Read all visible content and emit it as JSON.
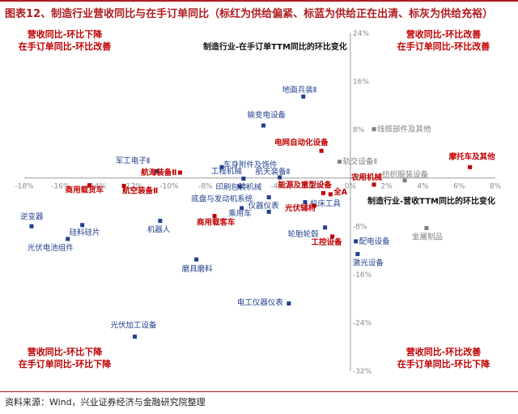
{
  "title": "图表12、制造行业营收同比与在手订单同比（标红为供给偏紧、标蓝为供给正在出清、标灰为供给充裕）",
  "source": "资料来源：Wind，兴业证券经济与金融研究院整理",
  "colors": {
    "red": "#c00000",
    "blue": "#1f3f8f",
    "gray": "#808080",
    "axis": "#999999",
    "title": "#b01c20"
  },
  "chart_data": {
    "type": "scatter",
    "xlabel": "制造行业-营收TTM同比的环比变化",
    "ylabel": "制造行业-在手订单TTM同比的环比变化",
    "xlim": [
      -18,
      8
    ],
    "ylim": [
      -32,
      24
    ],
    "x_ticks": [
      "-18%",
      "-16%",
      "-14%",
      "-12%",
      "-10%",
      "-8%",
      "-6%",
      "-4%",
      "-2%",
      "0%",
      "2%",
      "4%",
      "6%",
      "8%"
    ],
    "x_tick_values": [
      -18,
      -16,
      -14,
      -12,
      -10,
      -8,
      -6,
      -4,
      -2,
      0,
      2,
      4,
      6,
      8
    ],
    "y_ticks": [
      "24%",
      "16%",
      "8%",
      "0%",
      "-8%",
      "-16%",
      "-24%",
      "-32%"
    ],
    "y_tick_values": [
      24,
      16,
      8,
      0,
      -8,
      -16,
      -24,
      -32
    ],
    "quadrants": [
      {
        "pos": "top-left",
        "line1": "营收同比-环比下降",
        "line2": "在手订单同比-环比改善"
      },
      {
        "pos": "top-right",
        "line1": "营收同比-环比改善",
        "line2": "在手订单同比-环比改善"
      },
      {
        "pos": "bottom-left",
        "line1": "营收同比-环比下降",
        "line2": "在手订单同比-环比下降"
      },
      {
        "pos": "bottom-right",
        "line1": "营收同比-环比改善",
        "line2": "在手订单同比-环比下降"
      }
    ],
    "points": [
      {
        "name": "地面兵装Ⅱ",
        "x": -2.6,
        "y": 13.5,
        "category": "blue"
      },
      {
        "name": "输变电设备",
        "x": -4.8,
        "y": 8.7,
        "category": "blue"
      },
      {
        "name": "线缆部件及其他",
        "x": 1.3,
        "y": 8.1,
        "category": "gray"
      },
      {
        "name": "电网自动化设备",
        "x": -1.6,
        "y": 4.5,
        "category": "red"
      },
      {
        "name": "摩托车及其他",
        "x": 6.6,
        "y": 1.8,
        "category": "red"
      },
      {
        "name": "军工电子Ⅱ",
        "x": -10.7,
        "y": 1.1,
        "category": "blue"
      },
      {
        "name": "车身附件及饰件",
        "x": -7.1,
        "y": 1.8,
        "category": "blue"
      },
      {
        "name": "航海装备Ⅱ",
        "x": -9.4,
        "y": 0.9,
        "category": "red"
      },
      {
        "name": "工程机械",
        "x": -5.9,
        "y": -0.1,
        "category": "blue"
      },
      {
        "name": "航天装备Ⅱ",
        "x": -3.9,
        "y": 0.1,
        "category": "blue"
      },
      {
        "name": "轨交设备Ⅱ",
        "x": -0.6,
        "y": 2.7,
        "category": "gray"
      },
      {
        "name": "纺织服装设备",
        "x": 3.0,
        "y": -0.4,
        "category": "gray"
      },
      {
        "name": "印刷包装机械",
        "x": -6.1,
        "y": -1.4,
        "category": "blue"
      },
      {
        "name": "农用机械",
        "x": 1.3,
        "y": -1.1,
        "category": "red"
      },
      {
        "name": "商用载货车",
        "x": -14.4,
        "y": -1.2,
        "category": "red"
      },
      {
        "name": "航空装备Ⅱ",
        "x": -12.5,
        "y": -1.3,
        "category": "red"
      },
      {
        "name": "能源及重型设备",
        "x": -1.5,
        "y": -2.5,
        "category": "red"
      },
      {
        "name": "全A",
        "x": -1.1,
        "y": -2.7,
        "category": "red"
      },
      {
        "name": "底盘与发动机系统",
        "x": -4.5,
        "y": -3.2,
        "category": "blue"
      },
      {
        "name": "机床工具",
        "x": -2.5,
        "y": -4.0,
        "category": "blue"
      },
      {
        "name": "仪器仪表",
        "x": -6.0,
        "y": -5.0,
        "category": "blue"
      },
      {
        "name": "乘用车",
        "x": -4.5,
        "y": -5.6,
        "category": "blue"
      },
      {
        "name": "光伏辅材",
        "x": -2.0,
        "y": -4.6,
        "category": "red"
      },
      {
        "name": "商用载客车",
        "x": -7.5,
        "y": -6.3,
        "category": "red"
      },
      {
        "name": "机器人",
        "x": -10.5,
        "y": -7.1,
        "category": "blue"
      },
      {
        "name": "逆变器",
        "x": -17.6,
        "y": -8.0,
        "category": "blue"
      },
      {
        "name": "硅料硅片",
        "x": -14.8,
        "y": -7.8,
        "category": "blue"
      },
      {
        "name": "轮胎轮毂",
        "x": -1.4,
        "y": -8.2,
        "category": "blue"
      },
      {
        "name": "工控设备",
        "x": -1.0,
        "y": -9.7,
        "category": "red"
      },
      {
        "name": "金属制品",
        "x": 4.2,
        "y": -8.3,
        "category": "gray"
      },
      {
        "name": "配电设备",
        "x": 0.3,
        "y": -10.5,
        "category": "blue"
      },
      {
        "name": "激光设备",
        "x": 0.4,
        "y": -12.6,
        "category": "blue"
      },
      {
        "name": "光伏电池组件",
        "x": -15.6,
        "y": -10.1,
        "category": "blue"
      },
      {
        "name": "磨具磨料",
        "x": -8.5,
        "y": -13.5,
        "category": "blue"
      },
      {
        "name": "电工仪器仪表",
        "x": -3.4,
        "y": -20.8,
        "category": "blue"
      },
      {
        "name": "光伏加工设备",
        "x": -11.9,
        "y": -26.3,
        "category": "blue"
      }
    ]
  }
}
